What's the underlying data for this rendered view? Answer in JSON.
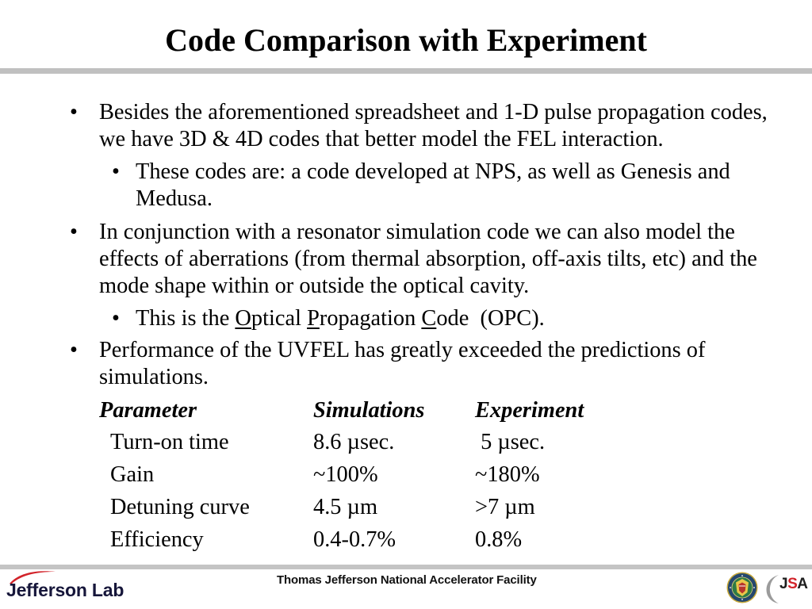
{
  "slide": {
    "title": "Code Comparison with Experiment",
    "bullet_char": "•",
    "bullets": [
      {
        "lines": [
          "Besides the aforementioned spreadsheet and 1-D pulse propagation codes,",
          "we have 3D & 4D codes that better model the FEL interaction."
        ],
        "sub": {
          "lines": [
            "These codes are: a code developed at NPS, as well as Genesis and",
            "Medusa."
          ]
        }
      },
      {
        "lines": [
          "In conjunction with a resonator simulation code we can also model the",
          "effects of aberrations (from thermal absorption, off-axis tilts, etc) and the",
          "mode shape within or outside the optical cavity."
        ],
        "sub": {
          "segments": [
            {
              "text": "This is the ",
              "underline": false
            },
            {
              "text": "O",
              "underline": true
            },
            {
              "text": "ptical ",
              "underline": false
            },
            {
              "text": "P",
              "underline": true
            },
            {
              "text": "ropagation ",
              "underline": false
            },
            {
              "text": "C",
              "underline": true
            },
            {
              "text": "ode  (OPC).",
              "underline": false
            }
          ]
        }
      },
      {
        "lines": [
          "Performance of the UVFEL has greatly exceeded the predictions of",
          "simulations."
        ]
      }
    ],
    "table": {
      "headers": [
        "Parameter",
        "Simulations",
        "Experiment"
      ],
      "rows": [
        [
          "Turn-on time",
          "8.6 µsec.",
          " 5 µsec."
        ],
        [
          "Gain",
          "~100%",
          "~180%"
        ],
        [
          "Detuning curve",
          "4.5 µm",
          ">7 µm"
        ],
        [
          "Efficiency",
          "0.4-0.7%",
          "0.8%"
        ]
      ]
    }
  },
  "footer": {
    "institution": "Thomas Jefferson National Accelerator Facility",
    "left_logo_text": "Jefferson Lab",
    "left_logo_icon": "jlab-swoosh-icon",
    "seal_icon": "doe-seal-icon",
    "jsa_icon": "jsa-arc-icon",
    "jsa_letters": [
      "J",
      "S",
      "A"
    ]
  },
  "colors": {
    "text": "#000000",
    "title_rule": "#c0c0c0",
    "footer_rule": "#c4c4c4",
    "jlab_red": "#d2232a",
    "jlab_navy": "#16163a",
    "jsa_red": "#d2232a",
    "jsa_gray": "#9b9b9b"
  }
}
